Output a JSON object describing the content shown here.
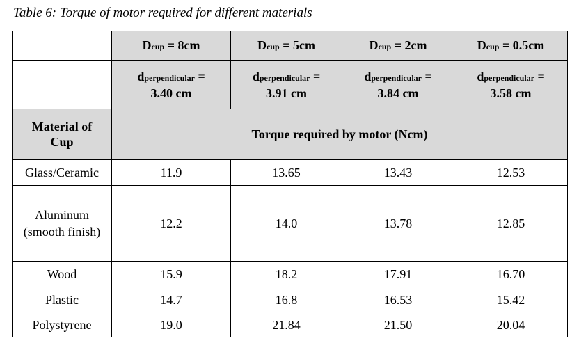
{
  "caption": "Table 6: Torque of motor required for different materials",
  "columns": [
    {
      "d_label": "D",
      "d_sub": "cup",
      "d_value": "= 8cm",
      "perp_label": "d",
      "perp_sub": "perpendicular",
      "perp_eq": "=",
      "perp_value": "3.40 cm"
    },
    {
      "d_label": "D",
      "d_sub": "cup",
      "d_value": "= 5cm",
      "perp_label": "d",
      "perp_sub": "perpendicular",
      "perp_eq": "=",
      "perp_value": "3.91 cm"
    },
    {
      "d_label": "D",
      "d_sub": "cup",
      "d_value": "= 2cm",
      "perp_label": "d",
      "perp_sub": "perpendicular",
      "perp_eq": "=",
      "perp_value": "3.84 cm"
    },
    {
      "d_label": "D",
      "d_sub": "cup",
      "d_value": "= 0.5cm",
      "perp_label": "d",
      "perp_sub": "perpendicular",
      "perp_eq": "=",
      "perp_value": "3.58 cm"
    }
  ],
  "material_header": "Material of Cup",
  "torque_header": "Torque required by motor (Ncm)",
  "rows": [
    {
      "material": "Glass/Ceramic",
      "values": [
        "11.9",
        "13.65",
        "13.43",
        "12.53"
      ]
    },
    {
      "material": "Aluminum (smooth finish)",
      "values": [
        "12.2",
        "14.0",
        "13.78",
        "12.85"
      ]
    },
    {
      "material": "Wood",
      "values": [
        "15.9",
        "18.2",
        "17.91",
        "16.70"
      ]
    },
    {
      "material": "Plastic",
      "values": [
        "14.7",
        "16.8",
        "16.53",
        "15.42"
      ]
    },
    {
      "material": "Polystyrene",
      "values": [
        "19.0",
        "21.84",
        "21.50",
        "20.04"
      ]
    }
  ]
}
